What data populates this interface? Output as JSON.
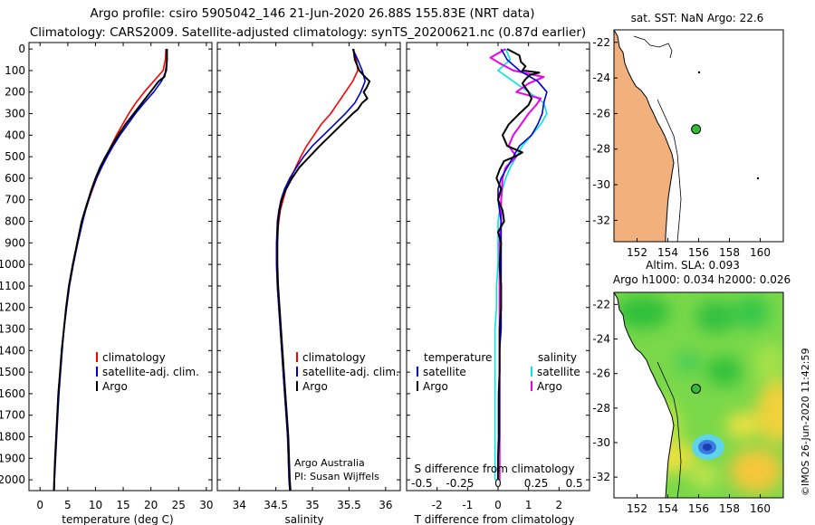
{
  "header": {
    "title_line1": "Argo profile: csiro 5905042_146 21-Jun-2020 26.88S 155.83E (NRT data)",
    "title_line2": "Climatology: CARS2009. Satellite-adjusted climatology: synTS_20200621.nc (0.87d earlier)"
  },
  "colors": {
    "red": "#ff0000",
    "blue": "#0000cc",
    "black": "#000000",
    "cyan": "#00e5e5",
    "magenta": "#ee00ee",
    "land": "#f2b07c"
  },
  "depth_ticks": [
    0,
    100,
    200,
    300,
    400,
    500,
    600,
    700,
    800,
    900,
    1000,
    1100,
    1200,
    1300,
    1400,
    1500,
    1600,
    1700,
    1800,
    1900,
    2000
  ],
  "chart_data": [
    {
      "type": "line",
      "title": "",
      "xlabel": "temperature (deg C)",
      "ylabel": "depth",
      "xlim": [
        -2,
        31
      ],
      "ylim": [
        2050,
        -30
      ],
      "xticks": [
        0,
        5,
        10,
        15,
        20,
        25,
        30
      ],
      "legend": [
        "climatology",
        "satellite-adj. clim.",
        "Argo"
      ],
      "series": [
        {
          "name": "climatology",
          "color": "#ff0000",
          "depth": [
            0,
            50,
            100,
            150,
            200,
            250,
            300,
            350,
            400,
            450,
            500,
            550,
            600,
            650,
            700,
            750,
            800,
            900,
            1000,
            1100,
            1200,
            1300,
            1400,
            1500,
            1600,
            1700,
            1800,
            1900,
            2000,
            2050
          ],
          "values": [
            22.7,
            22.6,
            22.2,
            20.5,
            18.8,
            17.3,
            16.0,
            14.9,
            13.8,
            12.8,
            11.9,
            11.0,
            10.2,
            9.5,
            8.8,
            8.2,
            7.6,
            6.7,
            5.9,
            5.2,
            4.7,
            4.3,
            3.9,
            3.6,
            3.3,
            3.1,
            2.9,
            2.7,
            2.55,
            2.5
          ]
        },
        {
          "name": "satellite-adj. clim.",
          "color": "#0000cc",
          "depth": [
            0,
            50,
            100,
            150,
            200,
            250,
            300,
            350,
            400,
            450,
            500,
            550,
            600,
            650,
            700,
            750,
            800,
            900,
            1000,
            1100,
            1200,
            1300,
            1400,
            1500,
            1600,
            1700,
            1800,
            1900,
            2000,
            2050
          ],
          "values": [
            22.8,
            22.9,
            22.8,
            21.9,
            20.5,
            18.8,
            17.2,
            15.8,
            14.4,
            13.2,
            12.1,
            11.1,
            10.2,
            9.4,
            8.8,
            8.2,
            7.7,
            6.8,
            6.0,
            5.3,
            4.8,
            4.3,
            4.0,
            3.7,
            3.4,
            3.2,
            3.0,
            2.8,
            2.6,
            2.55
          ]
        },
        {
          "name": "Argo",
          "color": "#000000",
          "depth": [
            0,
            50,
            100,
            130,
            150,
            200,
            250,
            300,
            350,
            400,
            450,
            500,
            550,
            600,
            650,
            700,
            750,
            800,
            900,
            1000,
            1100,
            1200,
            1300,
            1400,
            1500,
            1600,
            1700,
            1800,
            1900,
            2000,
            2050
          ],
          "values": [
            22.9,
            22.9,
            22.7,
            22.4,
            21.4,
            19.9,
            18.4,
            16.9,
            15.4,
            14.1,
            12.9,
            11.8,
            10.8,
            10.0,
            9.3,
            8.7,
            8.1,
            7.5,
            6.7,
            5.9,
            5.2,
            4.7,
            4.3,
            3.9,
            3.6,
            3.3,
            3.1,
            2.9,
            2.7,
            2.55,
            2.5
          ]
        }
      ]
    },
    {
      "type": "line",
      "title": "",
      "xlabel": "salinity",
      "ylabel": "depth",
      "xlim": [
        33.7,
        36.2
      ],
      "ylim": [
        2050,
        -30
      ],
      "xticks": [
        34,
        34.5,
        35,
        35.5,
        36
      ],
      "legend": [
        "climatology",
        "satellite-adj. clim.",
        "Argo"
      ],
      "annotation": [
        "Argo Australia",
        "PI: Susan Wijffels"
      ],
      "series": [
        {
          "name": "climatology",
          "color": "#ff0000",
          "depth": [
            0,
            50,
            100,
            150,
            200,
            250,
            300,
            350,
            400,
            450,
            500,
            550,
            600,
            650,
            700,
            750,
            800,
            900,
            1000,
            1100,
            1200,
            1300,
            1400,
            1500,
            1600,
            1700,
            1800,
            1900,
            2000,
            2050
          ],
          "values": [
            35.55,
            35.6,
            35.62,
            35.55,
            35.45,
            35.35,
            35.25,
            35.12,
            35.02,
            34.92,
            34.84,
            34.77,
            34.7,
            34.64,
            34.6,
            34.56,
            34.54,
            34.51,
            34.51,
            34.52,
            34.54,
            34.56,
            34.58,
            34.6,
            34.62,
            34.64,
            34.66,
            34.67,
            34.68,
            34.69
          ]
        },
        {
          "name": "satellite-adj. clim.",
          "color": "#0000cc",
          "depth": [
            0,
            50,
            100,
            150,
            200,
            250,
            300,
            350,
            400,
            450,
            500,
            550,
            600,
            650,
            700,
            750,
            800,
            900,
            1000,
            1100,
            1200,
            1300,
            1400,
            1500,
            1600,
            1700,
            1800,
            1900,
            2000,
            2050
          ],
          "values": [
            35.55,
            35.62,
            35.68,
            35.72,
            35.66,
            35.58,
            35.45,
            35.3,
            35.15,
            35.0,
            34.88,
            34.78,
            34.69,
            34.62,
            34.57,
            34.54,
            34.52,
            34.51,
            34.51,
            34.52,
            34.54,
            34.56,
            34.58,
            34.6,
            34.62,
            34.64,
            34.66,
            34.67,
            34.68,
            34.69
          ]
        },
        {
          "name": "Argo",
          "color": "#000000",
          "depth": [
            0,
            50,
            100,
            130,
            150,
            180,
            200,
            230,
            250,
            280,
            300,
            350,
            400,
            450,
            500,
            550,
            600,
            650,
            700,
            750,
            800,
            900,
            1000,
            1100,
            1200,
            1300,
            1400,
            1500,
            1600,
            1700,
            1800,
            1900,
            2000,
            2050
          ],
          "values": [
            35.56,
            35.58,
            35.64,
            35.72,
            35.78,
            35.74,
            35.7,
            35.75,
            35.68,
            35.62,
            35.55,
            35.4,
            35.25,
            35.1,
            34.96,
            34.82,
            34.72,
            34.64,
            34.58,
            34.55,
            34.53,
            34.52,
            34.52,
            34.53,
            34.55,
            34.57,
            34.59,
            34.61,
            34.63,
            34.65,
            34.67,
            34.68,
            34.69,
            34.7
          ]
        }
      ]
    },
    {
      "type": "line",
      "title": "",
      "xlabel": "T difference from climatology",
      "x2label": "S difference from climatology",
      "ylabel": "depth",
      "xlim": [
        -3,
        3
      ],
      "ylim": [
        2050,
        -30
      ],
      "xticks": [
        -2,
        -1,
        0,
        1,
        2
      ],
      "x2ticks": [
        "-0.5",
        "-0.25",
        "0",
        "0.25",
        "0.5"
      ],
      "legend_left_title": "temperature",
      "legend_right_title": "salinity",
      "legend": [
        "satellite",
        "Argo",
        "satellite",
        "Argo"
      ],
      "series": [
        {
          "name": "T satellite",
          "color": "#0000cc",
          "depth": [
            0,
            50,
            100,
            150,
            200,
            250,
            300,
            350,
            400,
            450,
            500,
            550,
            600,
            650,
            700,
            800,
            900,
            1000,
            1100,
            1200,
            1300,
            1400,
            1500,
            1600,
            1700,
            1800,
            1900,
            2000
          ],
          "values": [
            0.1,
            0.3,
            0.7,
            1.3,
            1.6,
            1.5,
            1.45,
            1.3,
            1.1,
            0.7,
            0.5,
            0.3,
            0.1,
            0.0,
            0.0,
            0.1,
            0.1,
            0.1,
            0.1,
            0.1,
            0.1,
            0.05,
            0.05,
            0.05,
            0.05,
            0.05,
            0.0,
            0.0
          ]
        },
        {
          "name": "T Argo",
          "color": "#000000",
          "depth": [
            0,
            30,
            60,
            80,
            100,
            110,
            120,
            140,
            160,
            180,
            200,
            230,
            260,
            300,
            350,
            400,
            450,
            480,
            500,
            520,
            560,
            600,
            650,
            700,
            750,
            800,
            850,
            900,
            1000,
            1100,
            1200,
            1300,
            1400,
            1500,
            1600,
            1700,
            1800,
            1900,
            2000
          ],
          "values": [
            0.3,
            0.7,
            0.75,
            0.9,
            0.8,
            1.35,
            1.05,
            0.9,
            0.8,
            0.9,
            1.0,
            1.1,
            1.0,
            0.7,
            0.35,
            0.15,
            0.3,
            0.8,
            0.55,
            0.2,
            0.05,
            -0.05,
            0.1,
            0.0,
            0.15,
            0.2,
            0.0,
            0.1,
            0.05,
            0.1,
            0.1,
            0.05,
            0.05,
            0.05,
            0.02,
            0.02,
            0.02,
            0.0,
            0.0
          ]
        },
        {
          "name": "S satellite",
          "color": "#00e5e5",
          "depth": [
            0,
            50,
            100,
            150,
            200,
            250,
            300,
            350,
            400,
            450,
            500,
            550,
            600,
            650,
            700,
            800,
            900,
            1000,
            1100,
            1200,
            1300,
            1400,
            1500,
            1600,
            1700,
            1800,
            1900,
            2000
          ],
          "values": [
            0.05,
            0.08,
            0.0,
            0.1,
            0.2,
            0.3,
            0.32,
            0.28,
            0.22,
            0.16,
            0.12,
            0.08,
            0.05,
            0.03,
            0.02,
            0.0,
            0.0,
            0.0,
            -0.01,
            -0.01,
            -0.02,
            -0.02,
            -0.02,
            -0.02,
            -0.02,
            -0.02,
            -0.02,
            -0.02
          ]
        },
        {
          "name": "S Argo",
          "color": "#ee00ee",
          "depth": [
            0,
            40,
            70,
            100,
            130,
            160,
            200,
            230,
            260,
            300,
            350,
            400,
            450,
            500,
            550,
            600,
            700,
            800,
            900,
            1000,
            1100,
            1200,
            1300,
            1400,
            1500,
            1600,
            1700,
            1800,
            1900,
            2000
          ],
          "values": [
            0.05,
            -0.05,
            0.02,
            0.1,
            0.3,
            0.2,
            0.12,
            0.28,
            0.25,
            0.2,
            0.15,
            0.1,
            0.07,
            0.12,
            0.05,
            0.03,
            0.02,
            0.02,
            0.01,
            0.01,
            0.01,
            0.01,
            0.01,
            0.01,
            0.01,
            0.01,
            0.01,
            0.01,
            0.01,
            0.01
          ]
        }
      ]
    },
    {
      "type": "scatter",
      "title": "sat. SST: NaN Argo: 22.6",
      "xlabel": "",
      "ylabel": "",
      "xlim": [
        150.5,
        161.5
      ],
      "ylim": [
        -33.2,
        -21.3
      ],
      "xticks": [
        152,
        154,
        156,
        158,
        160
      ],
      "yticks": [
        -22,
        -24,
        -26,
        -28,
        -30,
        -32
      ],
      "points": [
        {
          "lon": 155.83,
          "lat": -26.88,
          "label": "Argo float",
          "color": "#33bb33"
        }
      ]
    },
    {
      "type": "heatmap",
      "title_top": "Altim. SLA: 0.093",
      "title": "Argo h1000: 0.034 h2000: 0.026",
      "xlabel": "",
      "ylabel": "",
      "xlim": [
        150.5,
        161.5
      ],
      "ylim": [
        -33.2,
        -21.3
      ],
      "xticks": [
        152,
        154,
        156,
        158,
        160
      ],
      "yticks": [
        -22,
        -24,
        -26,
        -28,
        -30,
        -32
      ],
      "points": [
        {
          "lon": 155.83,
          "lat": -26.88,
          "label": "Argo float",
          "color": "#33bb33"
        }
      ]
    }
  ],
  "credit": "©IMOS 26-Jun-2020 11:42:59"
}
